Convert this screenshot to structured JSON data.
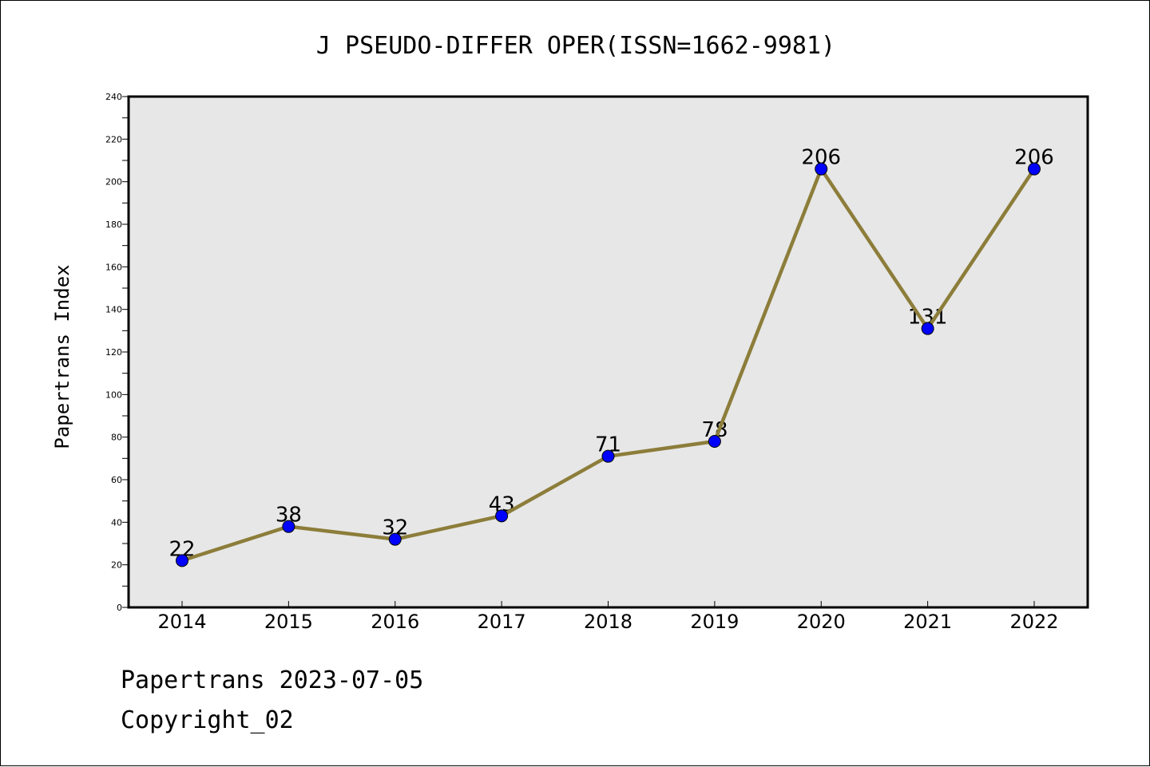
{
  "footer": {
    "line1": "Papertrans 2023-07-05",
    "line2": "Copyright_02"
  },
  "chart_data": {
    "type": "line",
    "title": "J PSEUDO-DIFFER OPER(ISSN=1662-9981)",
    "xlabel": "",
    "ylabel": "Papertrans Index",
    "x": [
      "2014",
      "2015",
      "2016",
      "2017",
      "2018",
      "2019",
      "2020",
      "2021",
      "2022"
    ],
    "series": [
      {
        "values": [
          22,
          38,
          32,
          43,
          71,
          78,
          206,
          131,
          206
        ]
      }
    ],
    "data_labels": [
      "22",
      "38",
      "32",
      "43",
      "71",
      "78",
      "206",
      "131",
      "206"
    ],
    "ylim": [
      0,
      240
    ],
    "yticks": [
      0,
      20,
      40,
      60,
      80,
      100,
      120,
      140,
      160,
      180,
      200,
      220,
      240
    ],
    "grid": false,
    "legend": "none",
    "colors": {
      "line": "#8c7d3a",
      "marker": "#0000ff",
      "plot_background": "#e7e7e7"
    }
  }
}
